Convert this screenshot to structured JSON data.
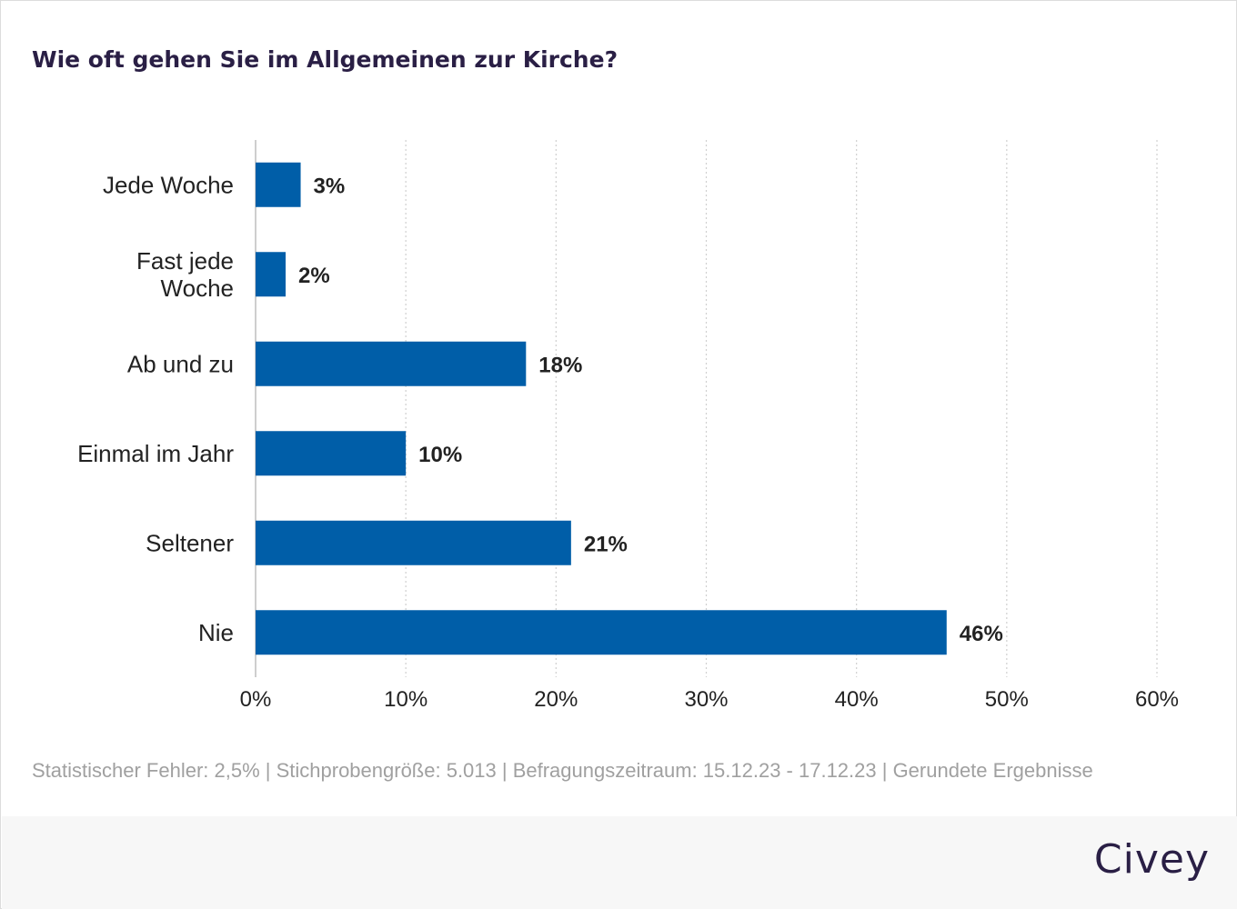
{
  "chart_data": {
    "type": "bar",
    "orientation": "horizontal",
    "title": "Wie oft gehen Sie im Allgemeinen zur Kirche?",
    "categories": [
      [
        "Jede Woche"
      ],
      [
        "Fast jede",
        "Woche"
      ],
      [
        "Ab und zu"
      ],
      [
        "Einmal im Jahr"
      ],
      [
        "Seltener"
      ],
      [
        "Nie"
      ]
    ],
    "values": [
      3,
      2,
      18,
      10,
      21,
      46
    ],
    "data_labels": [
      "3%",
      "2%",
      "18%",
      "10%",
      "21%",
      "46%"
    ],
    "xlim": [
      0,
      60
    ],
    "x_ticks": [
      0,
      10,
      20,
      30,
      40,
      50,
      60
    ],
    "x_tick_labels": [
      "0%",
      "10%",
      "20%",
      "30%",
      "40%",
      "50%",
      "60%"
    ],
    "xlabel": "",
    "ylabel": "",
    "grid": "vertical dotted",
    "bar_color": "#005ea8"
  },
  "footnote": "Statistischer Fehler: 2,5% | Stichprobengröße: 5.013 | Befragungszeitraum: 15.12.23 - 17.12.23 | Gerundete Ergebnisse",
  "brand": "Civey",
  "colors": {
    "title": "#2a1f45",
    "footnote": "#a0a0a0",
    "grid": "#d0d0d0"
  }
}
